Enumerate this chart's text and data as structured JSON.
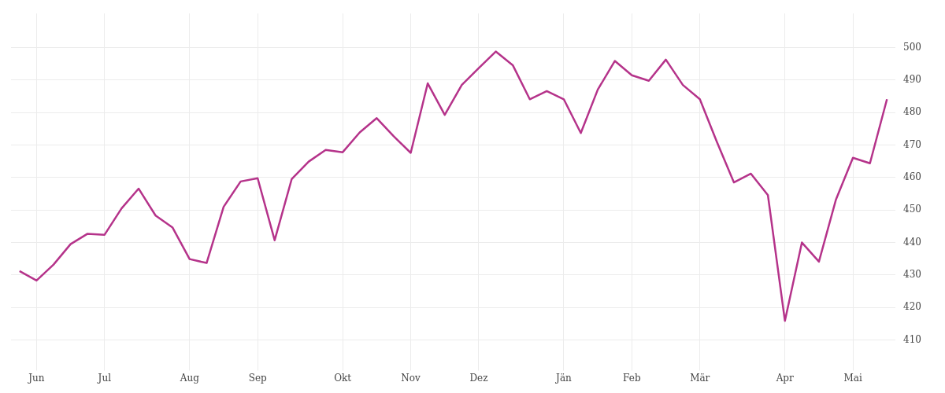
{
  "chart_data": {
    "type": "line",
    "categories": [
      null,
      "Jun",
      null,
      null,
      null,
      "Jul",
      null,
      null,
      null,
      null,
      "Aug",
      null,
      null,
      null,
      "Sep",
      null,
      null,
      null,
      null,
      "Okt",
      null,
      null,
      null,
      "Nov",
      null,
      null,
      null,
      "Dez",
      null,
      null,
      null,
      null,
      "Jän",
      null,
      null,
      null,
      "Feb",
      null,
      null,
      null,
      "Mär",
      null,
      null,
      null,
      null,
      "Apr",
      null,
      null,
      null,
      "Mai",
      null,
      null
    ],
    "series": [
      {
        "color": "#b5338a",
        "values": [
          431.2,
          428.3,
          433.2,
          439.5,
          442.7,
          442.4,
          450.5,
          456.6,
          448.3,
          444.6,
          434.9,
          433.7,
          451.0,
          458.8,
          459.8,
          440.7,
          459.5,
          464.9,
          468.5,
          467.8,
          473.9,
          478.3,
          472.7,
          467.6,
          489.0,
          479.3,
          488.5,
          493.7,
          498.8,
          494.6,
          484.1,
          486.6,
          484.1,
          473.7,
          487.1,
          495.9,
          491.5,
          489.8,
          496.3,
          488.5,
          484.1,
          471.0,
          458.5,
          461.2,
          454.6,
          415.9,
          440.0,
          434.1,
          453.2,
          466.1,
          464.4,
          484.1
        ]
      }
    ],
    "ylim": [
      402,
      510.5
    ],
    "yticks": [
      410,
      420,
      430,
      440,
      450,
      460,
      470,
      480,
      490,
      500
    ],
    "grid": true,
    "legend": false,
    "line_style": "solid"
  }
}
